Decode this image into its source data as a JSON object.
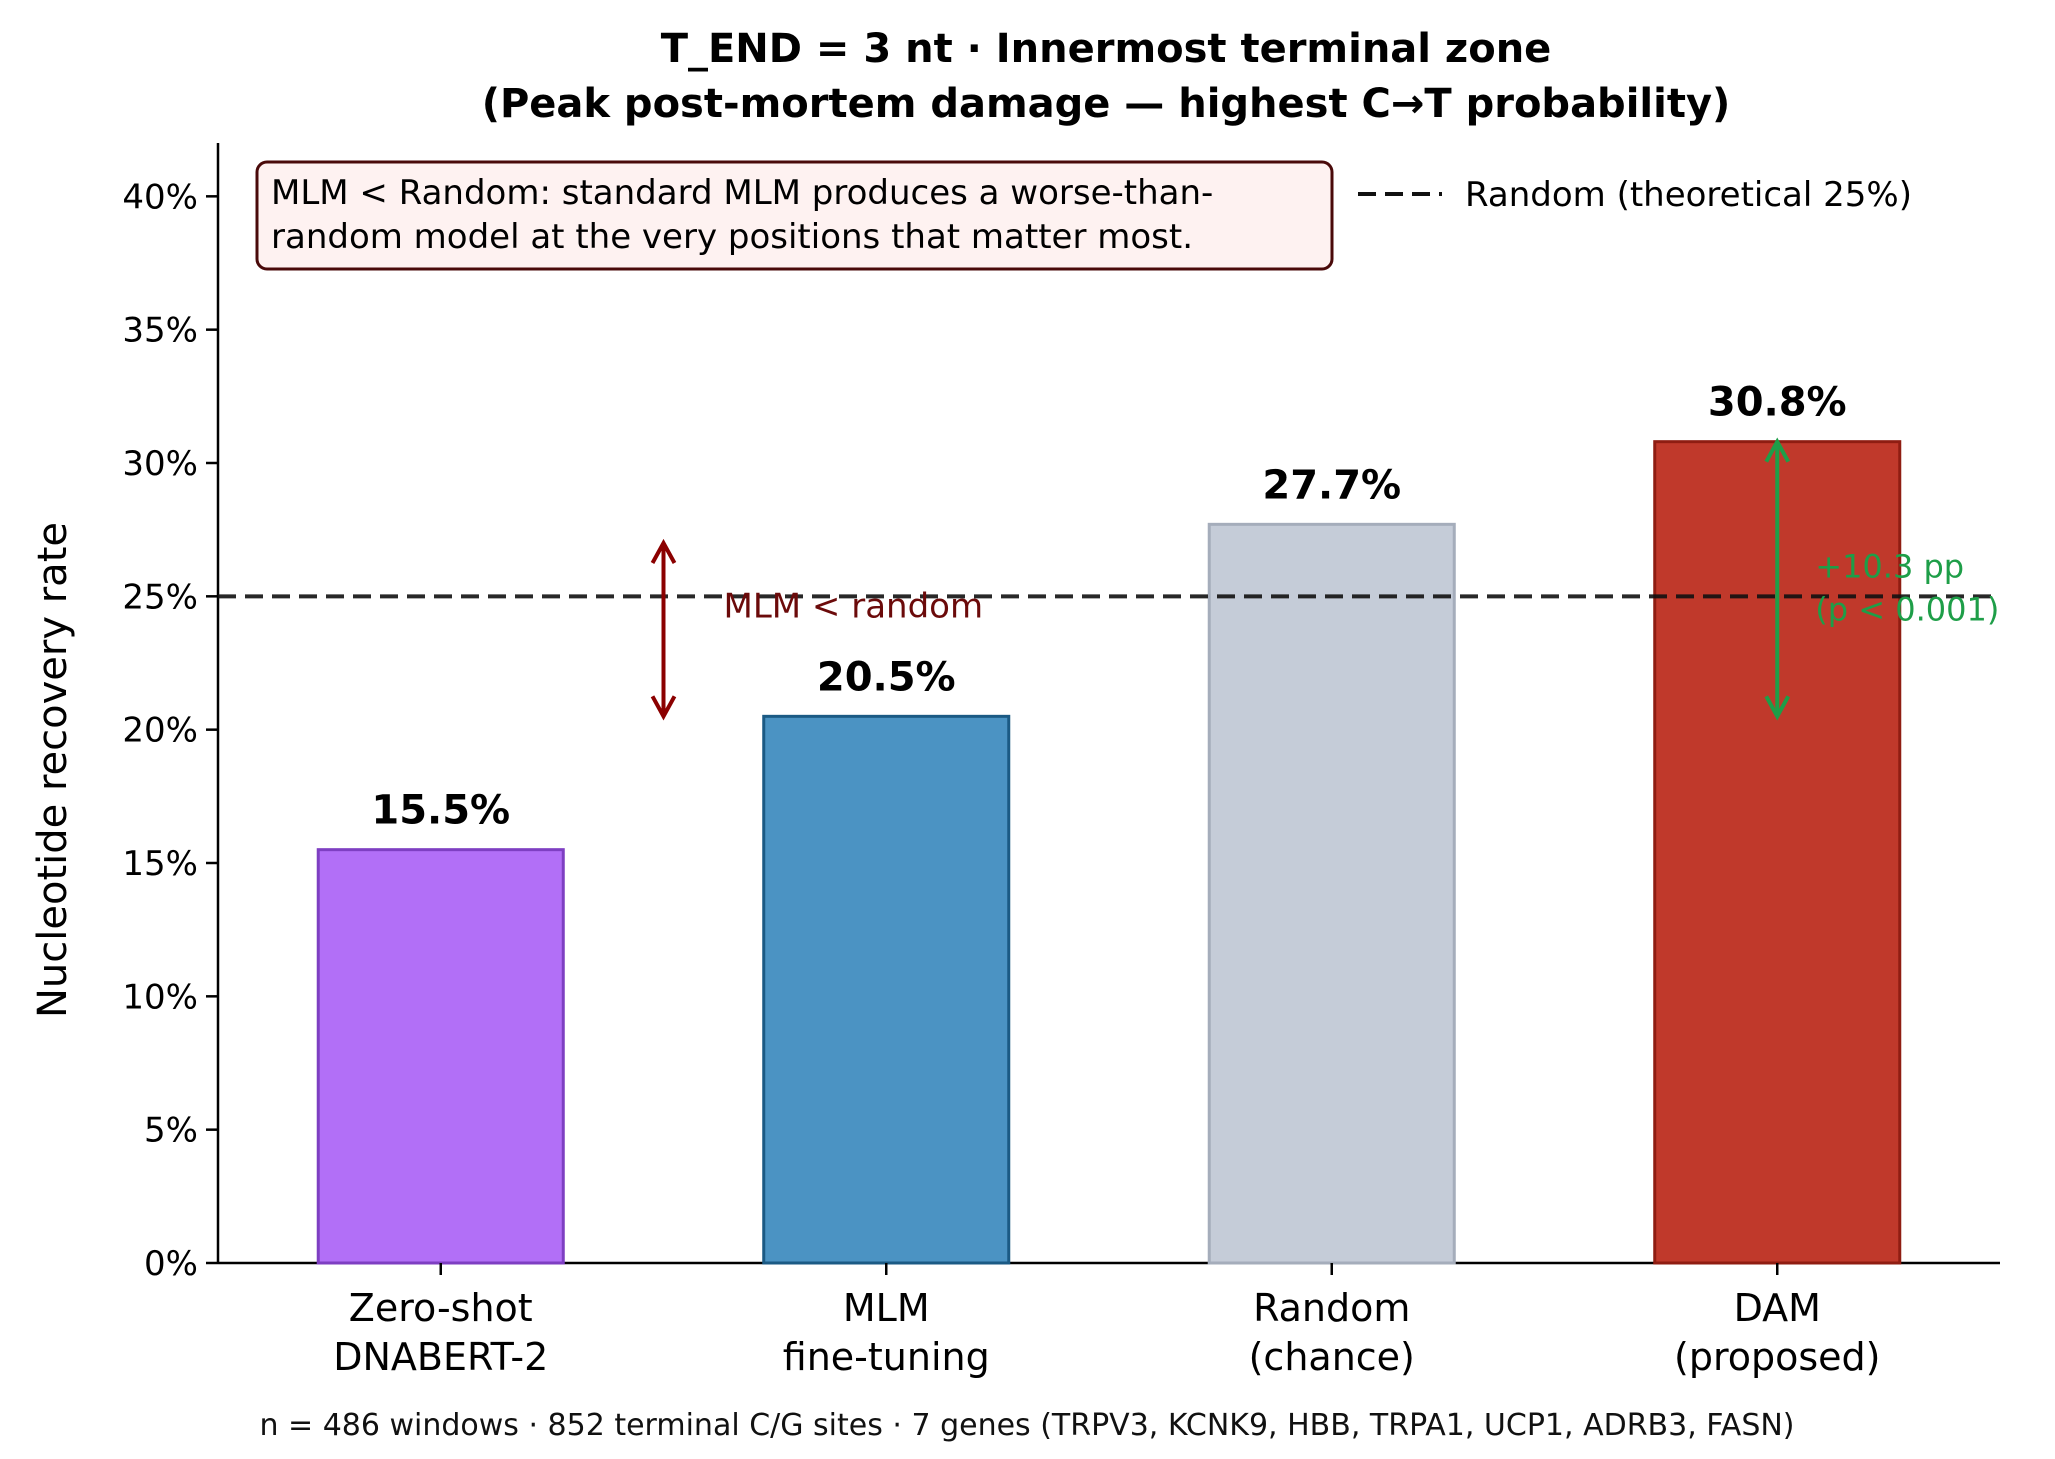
{
  "chart_data": {
    "type": "bar",
    "title_line1": "T_END = 3 nt  ·  Innermost terminal zone",
    "title_line2": "(Peak post-mortem damage — highest C→T probability)",
    "ylabel": "Nucleotide recovery rate",
    "xlabel": "",
    "ylim": [
      0,
      42
    ],
    "yticks": [
      0,
      5,
      10,
      15,
      20,
      25,
      30,
      35,
      40
    ],
    "ytick_labels": [
      "0%",
      "5%",
      "10%",
      "15%",
      "20%",
      "25%",
      "30%",
      "35%",
      "40%"
    ],
    "categories": [
      [
        "Zero-shot",
        "DNABERT-2"
      ],
      [
        "MLM",
        "fine-tuning"
      ],
      [
        "Random",
        "(chance)"
      ],
      [
        "DAM",
        "(proposed)"
      ]
    ],
    "values": [
      15.5,
      20.5,
      27.7,
      30.8
    ],
    "value_labels": [
      "15.5%",
      "20.5%",
      "27.7%",
      "30.8%"
    ],
    "colors": [
      "#b26ff7",
      "#4b93c3",
      "#c5ccd8",
      "#c0392b"
    ],
    "edge_colors": [
      "#7e3fc2",
      "#1b5a84",
      "#a5adbb",
      "#8f1d12"
    ],
    "reference_line": {
      "value": 25,
      "label": "Random (theoretical 25%)",
      "style": "dashed",
      "color": "#111111"
    },
    "legend_placement": "top-right",
    "grid": false,
    "annotations": {
      "box_text": [
        "MLM < Random: standard MLM produces a worse-than-",
        "random model at the very positions that matter most."
      ],
      "mlm_gap": {
        "label": "MLM < random",
        "from": 20.5,
        "to": 27.0,
        "color": "#8b0000"
      },
      "dam_gain": {
        "line1": "+10.3 pp",
        "line2": "(p < 0.001)",
        "from": 20.5,
        "to": 30.8,
        "color": "#1e9e48"
      }
    },
    "footnote": "n = 486 windows  ·  852 terminal C/G sites  ·  7 genes (TRPV3, KCNK9, HBB, TRPA1, UCP1, ADRB3, FASN)"
  }
}
